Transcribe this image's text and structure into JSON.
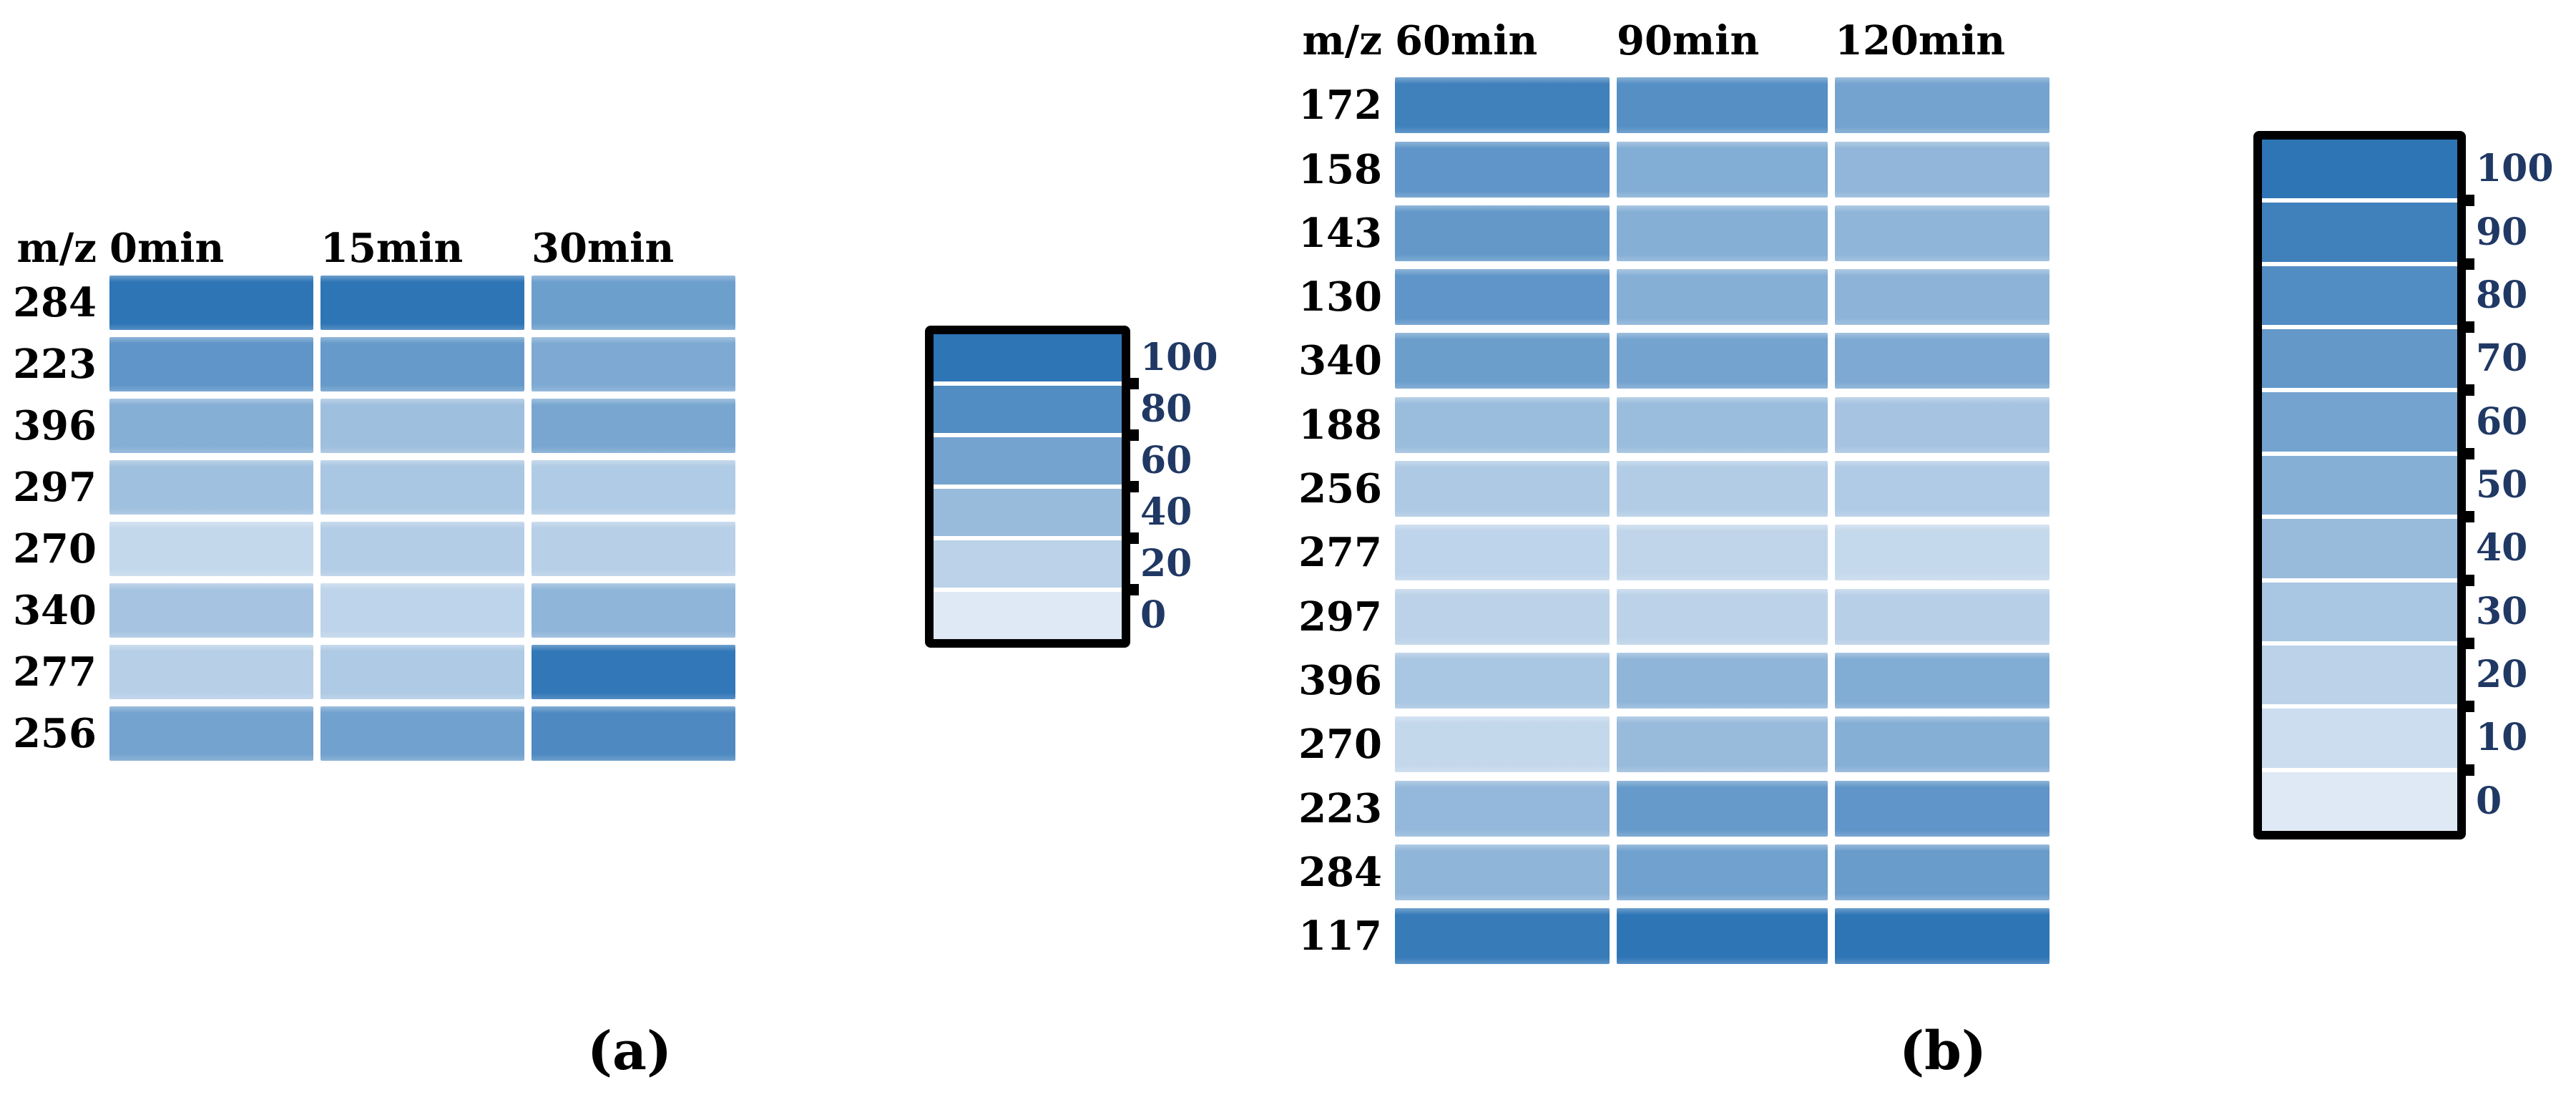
{
  "figure": {
    "caption_a": "(a)",
    "caption_b": "(b)"
  },
  "colors": {
    "scale_min": "#DEE9F5",
    "scale_max": "#2E75B6",
    "legend_label_text": "#203864",
    "text": "#000000",
    "legend_border": "#000000"
  },
  "chart_data": [
    {
      "type": "heatmap",
      "panel": "a",
      "title": "",
      "corner_label": "m/z",
      "columns": [
        "0min",
        "15min",
        "30min"
      ],
      "rows": [
        "284",
        "223",
        "396",
        "297",
        "270",
        "340",
        "277",
        "256"
      ],
      "values": [
        [
          100,
          100,
          64
        ],
        [
          72,
          68,
          55
        ],
        [
          50,
          36,
          58
        ],
        [
          35,
          30,
          26
        ],
        [
          15,
          24,
          22
        ],
        [
          32,
          18,
          45
        ],
        [
          22,
          27,
          98
        ],
        [
          60,
          62,
          82
        ]
      ],
      "value_domain": [
        0,
        100
      ],
      "legend_ticks": [
        100,
        80,
        60,
        40,
        20,
        0
      ],
      "legend_position": "right",
      "colorscale": {
        "min": "#DEE9F5",
        "max": "#2E75B6"
      }
    },
    {
      "type": "heatmap",
      "panel": "b",
      "title": "",
      "corner_label": "m/z",
      "columns": [
        "60min",
        "90min",
        "120min"
      ],
      "rows": [
        "172",
        "158",
        "143",
        "130",
        "340",
        "188",
        "256",
        "277",
        "297",
        "396",
        "270",
        "223",
        "284",
        "117"
      ],
      "values": [
        [
          90,
          78,
          60
        ],
        [
          72,
          52,
          44
        ],
        [
          70,
          50,
          45
        ],
        [
          72,
          50,
          46
        ],
        [
          65,
          60,
          55
        ],
        [
          38,
          38,
          32
        ],
        [
          28,
          25,
          26
        ],
        [
          18,
          17,
          14
        ],
        [
          20,
          20,
          22
        ],
        [
          30,
          45,
          53
        ],
        [
          15,
          40,
          50
        ],
        [
          42,
          68,
          72
        ],
        [
          45,
          62,
          66
        ],
        [
          95,
          100,
          100
        ]
      ],
      "value_domain": [
        0,
        100
      ],
      "legend_ticks": [
        100,
        90,
        80,
        70,
        60,
        50,
        40,
        30,
        20,
        10,
        0
      ],
      "legend_position": "right",
      "colorscale": {
        "min": "#DEE9F5",
        "max": "#2E75B6"
      }
    }
  ]
}
